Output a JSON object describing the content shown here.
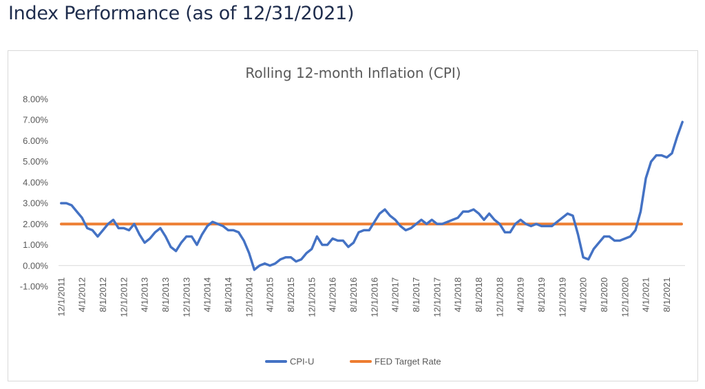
{
  "page": {
    "title": "Index Performance (as of 12/31/2021)"
  },
  "chart_data": {
    "type": "line",
    "title": "Rolling 12-month Inflation (CPI)",
    "xlabel": "",
    "ylabel": "",
    "ylim": [
      -0.01,
      0.08
    ],
    "y_ticks": [
      "8.00%",
      "7.00%",
      "6.00%",
      "5.00%",
      "4.00%",
      "3.00%",
      "2.00%",
      "1.00%",
      "0.00%",
      "-1.00%"
    ],
    "x_ticks": [
      "12/1/2011",
      "4/1/2012",
      "8/1/2012",
      "12/1/2012",
      "4/1/2013",
      "8/1/2013",
      "12/1/2013",
      "4/1/2014",
      "8/1/2014",
      "12/1/2014",
      "4/1/2015",
      "8/1/2015",
      "12/1/2015",
      "4/1/2016",
      "8/1/2016",
      "12/1/2016",
      "4/1/2017",
      "8/1/2017",
      "12/1/2017",
      "4/1/2018",
      "8/1/2018",
      "12/1/2018",
      "4/1/2019",
      "8/1/2019",
      "12/1/2019",
      "4/1/2020",
      "8/1/2020",
      "12/1/2020",
      "4/1/2021",
      "8/1/2021"
    ],
    "x_start": "12/1/2011",
    "x_end": "12/1/2021",
    "legend": "bottom",
    "grid": false,
    "series": [
      {
        "name": "CPI-U",
        "color": "#4472c4",
        "values": [
          0.03,
          0.03,
          0.029,
          0.026,
          0.023,
          0.018,
          0.017,
          0.014,
          0.017,
          0.02,
          0.022,
          0.018,
          0.018,
          0.017,
          0.02,
          0.015,
          0.011,
          0.013,
          0.016,
          0.018,
          0.014,
          0.009,
          0.007,
          0.011,
          0.014,
          0.014,
          0.01,
          0.015,
          0.019,
          0.021,
          0.02,
          0.019,
          0.017,
          0.017,
          0.016,
          0.012,
          0.006,
          -0.002,
          0.0,
          0.001,
          0.0,
          0.001,
          0.003,
          0.004,
          0.004,
          0.002,
          0.003,
          0.006,
          0.008,
          0.014,
          0.01,
          0.01,
          0.013,
          0.012,
          0.012,
          0.009,
          0.011,
          0.016,
          0.017,
          0.017,
          0.021,
          0.025,
          0.027,
          0.024,
          0.022,
          0.019,
          0.017,
          0.018,
          0.02,
          0.022,
          0.02,
          0.022,
          0.02,
          0.02,
          0.021,
          0.022,
          0.023,
          0.026,
          0.026,
          0.027,
          0.025,
          0.022,
          0.025,
          0.022,
          0.02,
          0.016,
          0.016,
          0.02,
          0.022,
          0.02,
          0.019,
          0.02,
          0.019,
          0.019,
          0.019,
          0.021,
          0.023,
          0.025,
          0.024,
          0.015,
          0.004,
          0.003,
          0.008,
          0.011,
          0.014,
          0.014,
          0.012,
          0.012,
          0.013,
          0.014,
          0.017,
          0.026,
          0.042,
          0.05,
          0.053,
          0.053,
          0.052,
          0.054,
          0.062,
          0.069
        ]
      },
      {
        "name": "FED Target Rate",
        "color": "#ed7d31",
        "values": [
          0.02,
          0.02
        ]
      }
    ]
  }
}
